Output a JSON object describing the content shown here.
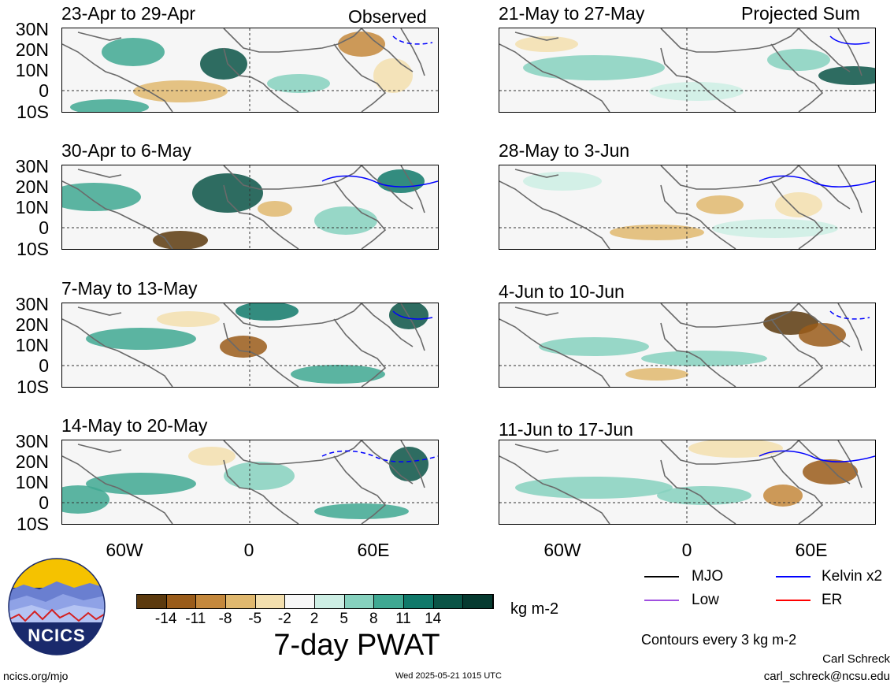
{
  "panels": {
    "observed": [
      {
        "title": "23-Apr to 29-Apr",
        "tag": "Observed"
      },
      {
        "title": "30-Apr to 6-May",
        "tag": ""
      },
      {
        "title": "7-May to 13-May",
        "tag": ""
      },
      {
        "title": "14-May to 20-May",
        "tag": ""
      }
    ],
    "projected": [
      {
        "title": "21-May to 27-May",
        "tag": "Projected Sum"
      },
      {
        "title": "28-May to 3-Jun",
        "tag": ""
      },
      {
        "title": "4-Jun to 10-Jun",
        "tag": ""
      },
      {
        "title": "11-Jun to 17-Jun",
        "tag": ""
      }
    ]
  },
  "lat_labels": [
    "30N",
    "20N",
    "10N",
    "0",
    "10S"
  ],
  "lon_labels": [
    "60W",
    "0",
    "60E"
  ],
  "colorbar": {
    "ticks": [
      "-14",
      "-11",
      "-8",
      "-5",
      "-2",
      "2",
      "5",
      "8",
      "11",
      "14"
    ],
    "colors": [
      "#5c3a0e",
      "#9a5c1a",
      "#c4883c",
      "#e0b86e",
      "#f3dfae",
      "#f7f7f7",
      "#cdeee4",
      "#86d1be",
      "#3fa892",
      "#10796a",
      "#0a5446",
      "#063a30"
    ],
    "units": "kg m-2",
    "title": "7-day PWAT"
  },
  "legend": {
    "items": [
      {
        "label": "MJO",
        "color": "#000000"
      },
      {
        "label": "Kelvin x2",
        "color": "#0000ff"
      },
      {
        "label": "Low",
        "color": "#a050e0"
      },
      {
        "label": "ER",
        "color": "#ff0000"
      }
    ],
    "contours": "Contours every 3 kg m-2"
  },
  "logo": {
    "text": "NCICS"
  },
  "footer": {
    "url": "ncics.org/mjo",
    "timestamp": "Wed 2025-05-21 1015 UTC",
    "author": "Carl Schreck",
    "email": "carl_schreck@ncsu.edu"
  }
}
